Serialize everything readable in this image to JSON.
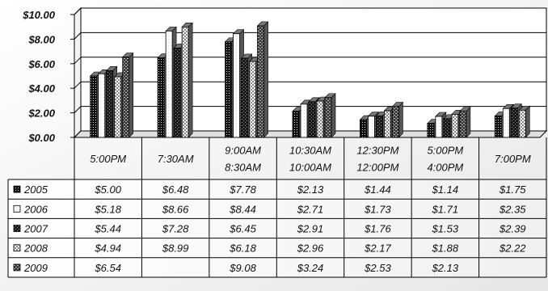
{
  "chart_data": {
    "type": "bar",
    "yaxis": {
      "ylim": [
        0,
        10
      ],
      "tick_labels": [
        "$0.00",
        "$2.00",
        "$4.00",
        "$6.00",
        "$8.00",
        "$10.00"
      ],
      "ticks": [
        0,
        2,
        4,
        6,
        8,
        10
      ]
    },
    "grid": true,
    "categories": [
      [
        "5:00PM"
      ],
      [
        "7:30AM"
      ],
      [
        "9:00AM",
        "8:30AM"
      ],
      [
        "10:30AM",
        "10:00AM"
      ],
      [
        "12:30PM",
        "12:00PM"
      ],
      [
        "5:00PM",
        "4:00PM"
      ],
      [
        "7:00PM"
      ]
    ],
    "series": [
      {
        "name": "2005",
        "pattern": "dots-dark",
        "values": [
          5.0,
          6.48,
          7.78,
          2.13,
          1.44,
          1.14,
          1.75
        ],
        "labels": [
          "$5.00",
          "$6.48",
          "$7.78",
          "$2.13",
          "$1.44",
          "$1.14",
          "$1.75"
        ]
      },
      {
        "name": "2006",
        "pattern": "light",
        "values": [
          5.18,
          8.66,
          8.44,
          2.71,
          1.73,
          1.71,
          2.35
        ],
        "labels": [
          "$5.18",
          "$8.66",
          "$8.44",
          "$2.71",
          "$1.73",
          "$1.71",
          "$2.35"
        ]
      },
      {
        "name": "2007",
        "pattern": "cross-dark",
        "values": [
          5.44,
          7.28,
          6.45,
          2.91,
          1.76,
          1.53,
          2.39
        ],
        "labels": [
          "$5.44",
          "$7.28",
          "$6.45",
          "$2.91",
          "$1.76",
          "$1.53",
          "$2.39"
        ]
      },
      {
        "name": "2008",
        "pattern": "check-light",
        "values": [
          4.94,
          8.99,
          6.18,
          2.96,
          2.17,
          1.88,
          2.22
        ],
        "labels": [
          "$4.94",
          "$8.99",
          "$6.18",
          "$2.96",
          "$2.17",
          "$1.88",
          "$2.22"
        ]
      },
      {
        "name": "2009",
        "pattern": "diamond-dark",
        "values": [
          6.54,
          null,
          9.08,
          3.24,
          2.53,
          2.13,
          null
        ],
        "labels": [
          "$6.54",
          "",
          "$9.08",
          "$3.24",
          "$2.53",
          "$2.13",
          ""
        ]
      }
    ]
  }
}
